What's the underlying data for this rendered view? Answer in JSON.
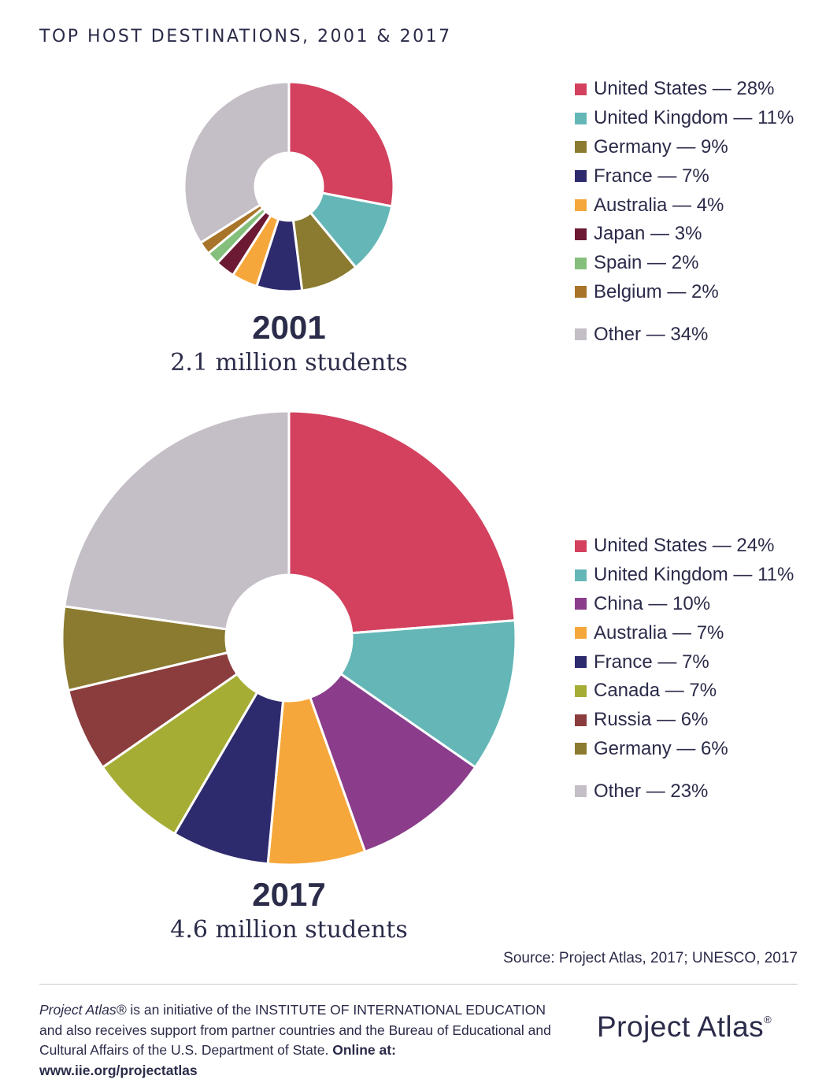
{
  "title": "TOP HOST DESTINATIONS, 2001 & 2017",
  "source": "Source: Project Atlas, 2017; UNESCO, 2017",
  "footer": {
    "brand": "Project Atlas®",
    "text1": " is an initiative of the INSTITUTE OF INTERNATIONAL EDUCATION and also receives support from partner countries and the Bureau of Educational and Cultural Affairs of the U.S. Department of State. ",
    "online": "Online at: www.iie.org/projectatlas",
    "logo_text": "Project Atlas",
    "logo_mark": "®"
  },
  "chart_data": [
    {
      "type": "pie",
      "year": "2001",
      "subtitle": "2.1 million students",
      "series": [
        {
          "name": "United States",
          "value": 28,
          "label": "United States — 28%",
          "color": "#d3415e"
        },
        {
          "name": "United Kingdom",
          "value": 11,
          "label": "United Kingdom — 11%",
          "color": "#65b7b7"
        },
        {
          "name": "Germany",
          "value": 9,
          "label": "Germany — 9%",
          "color": "#8a7b30"
        },
        {
          "name": "France",
          "value": 7,
          "label": "France — 7%",
          "color": "#2e2a6e"
        },
        {
          "name": "Australia",
          "value": 4,
          "label": "Australia — 4%",
          "color": "#f6a73b"
        },
        {
          "name": "Japan",
          "value": 3,
          "label": "Japan — 3%",
          "color": "#6c1a33"
        },
        {
          "name": "Spain",
          "value": 2,
          "label": "Spain — 2%",
          "color": "#84c07b"
        },
        {
          "name": "Belgium",
          "value": 2,
          "label": "Belgium — 2%",
          "color": "#a87429"
        },
        {
          "name": "Other",
          "value": 34,
          "label": "Other — 34%",
          "color": "#c4bec6"
        }
      ]
    },
    {
      "type": "pie",
      "year": "2017",
      "subtitle": "4.6 million students",
      "series": [
        {
          "name": "United States",
          "value": 24,
          "label": "United States — 24%",
          "color": "#d3415e"
        },
        {
          "name": "United Kingdom",
          "value": 11,
          "label": "United Kingdom — 11%",
          "color": "#65b7b7"
        },
        {
          "name": "China",
          "value": 10,
          "label": "China — 10%",
          "color": "#8b3d8c"
        },
        {
          "name": "Australia",
          "value": 7,
          "label": "Australia — 7%",
          "color": "#f6a73b"
        },
        {
          "name": "France",
          "value": 7,
          "label": "France — 7%",
          "color": "#2e2a6e"
        },
        {
          "name": "Canada",
          "value": 7,
          "label": "Canada — 7%",
          "color": "#a6ad35"
        },
        {
          "name": "Russia",
          "value": 6,
          "label": "Russia — 6%",
          "color": "#8b3c3c"
        },
        {
          "name": "Germany",
          "value": 6,
          "label": "Germany — 6%",
          "color": "#8a7b30"
        },
        {
          "name": "Other",
          "value": 23,
          "label": "Other — 23%",
          "color": "#c4bec6"
        }
      ]
    }
  ]
}
